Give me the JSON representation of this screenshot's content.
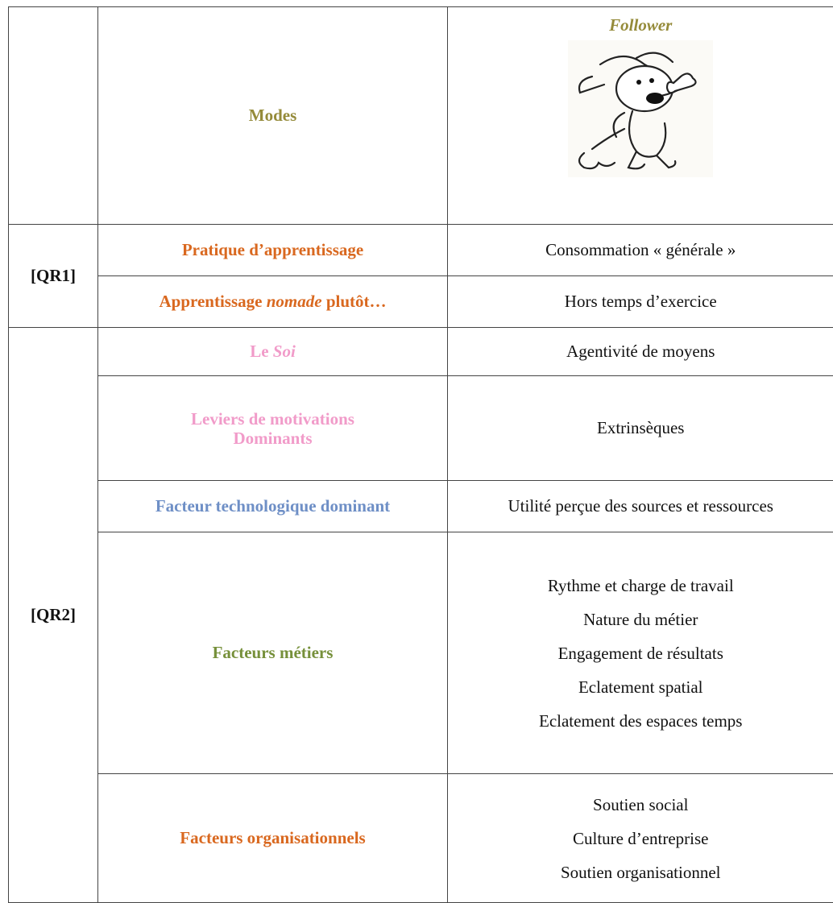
{
  "header": {
    "modes": "Modes",
    "follower": "Follower"
  },
  "groups": [
    {
      "label": "[QR1]",
      "rows": [
        {
          "factor": [
            "Pratique d’apprentissage"
          ],
          "values": [
            "Consommation « générale »"
          ]
        },
        {
          "factor": [
            "Apprentissage ",
            "nomade",
            " plutôt…"
          ],
          "values": [
            "Hors temps d’exercice"
          ]
        }
      ]
    },
    {
      "label": "[QR2]",
      "rows": [
        {
          "factor": [
            "Le ",
            "Soi"
          ],
          "values": [
            "Agentivité de moyens"
          ]
        },
        {
          "factor": [
            "Leviers de motivations",
            "Dominants"
          ],
          "values": [
            "Extrinsèques"
          ]
        },
        {
          "factor": [
            "Facteur technologique dominant"
          ],
          "values": [
            "Utilité perçue des sources et ressources"
          ]
        },
        {
          "factor": [
            "Facteurs métiers"
          ],
          "values": [
            "Rythme et charge de travail",
            "Nature du métier",
            "Engagement de résultats",
            "Eclatement spatial",
            "Eclatement des espaces temps"
          ]
        },
        {
          "factor": [
            "Facteurs organisationnels"
          ],
          "values": [
            "Soutien social",
            "Culture d’entreprise",
            "Soutien organisationnel"
          ]
        }
      ]
    }
  ]
}
